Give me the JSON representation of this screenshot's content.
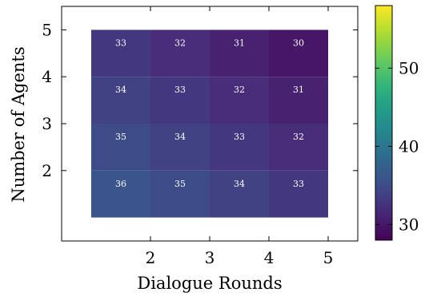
{
  "chart_data": {
    "type": "heatmap",
    "title": "",
    "xlabel": "Dialogue Rounds",
    "ylabel": "Number of Agents",
    "x_ticks": [
      "2",
      "3",
      "4",
      "5"
    ],
    "y_ticks": [
      "2",
      "3",
      "4",
      "5"
    ],
    "xlim": [
      1,
      5
    ],
    "ylim": [
      1,
      5
    ],
    "cells": [
      {
        "x": 1,
        "y": 1,
        "value": 36
      },
      {
        "x": 2,
        "y": 1,
        "value": 35
      },
      {
        "x": 3,
        "y": 1,
        "value": 34
      },
      {
        "x": 4,
        "y": 1,
        "value": 33
      },
      {
        "x": 1,
        "y": 2,
        "value": 35
      },
      {
        "x": 2,
        "y": 2,
        "value": 34
      },
      {
        "x": 3,
        "y": 2,
        "value": 33
      },
      {
        "x": 4,
        "y": 2,
        "value": 32
      },
      {
        "x": 1,
        "y": 3,
        "value": 34
      },
      {
        "x": 2,
        "y": 3,
        "value": 33
      },
      {
        "x": 3,
        "y": 3,
        "value": 32
      },
      {
        "x": 4,
        "y": 3,
        "value": 31
      },
      {
        "x": 1,
        "y": 4,
        "value": 33
      },
      {
        "x": 2,
        "y": 4,
        "value": 32
      },
      {
        "x": 3,
        "y": 4,
        "value": 31
      },
      {
        "x": 4,
        "y": 4,
        "value": 30
      }
    ],
    "colorbar": {
      "colormap": "viridis",
      "range": [
        28,
        58
      ],
      "ticks": [
        "30",
        "40",
        "50"
      ]
    },
    "grid": false,
    "legend": "none"
  }
}
